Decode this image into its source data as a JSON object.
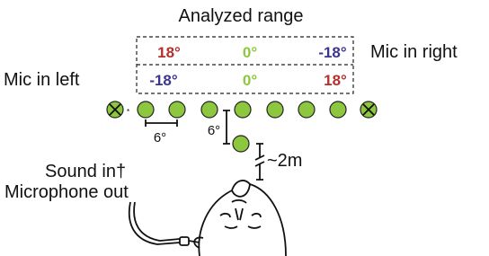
{
  "title": "Analyzed range",
  "rows": [
    {
      "label": "Mic in right",
      "angles": [
        "18°",
        "0°",
        "-18°"
      ]
    },
    {
      "label": "Mic in left",
      "angles": [
        "-18°",
        "0°",
        "18°"
      ]
    }
  ],
  "marker": "*",
  "spacing_labels": [
    "6°",
    "6°"
  ],
  "distance_label": "~2m",
  "io_labels": [
    "Sound in†",
    "Microphone out"
  ]
}
